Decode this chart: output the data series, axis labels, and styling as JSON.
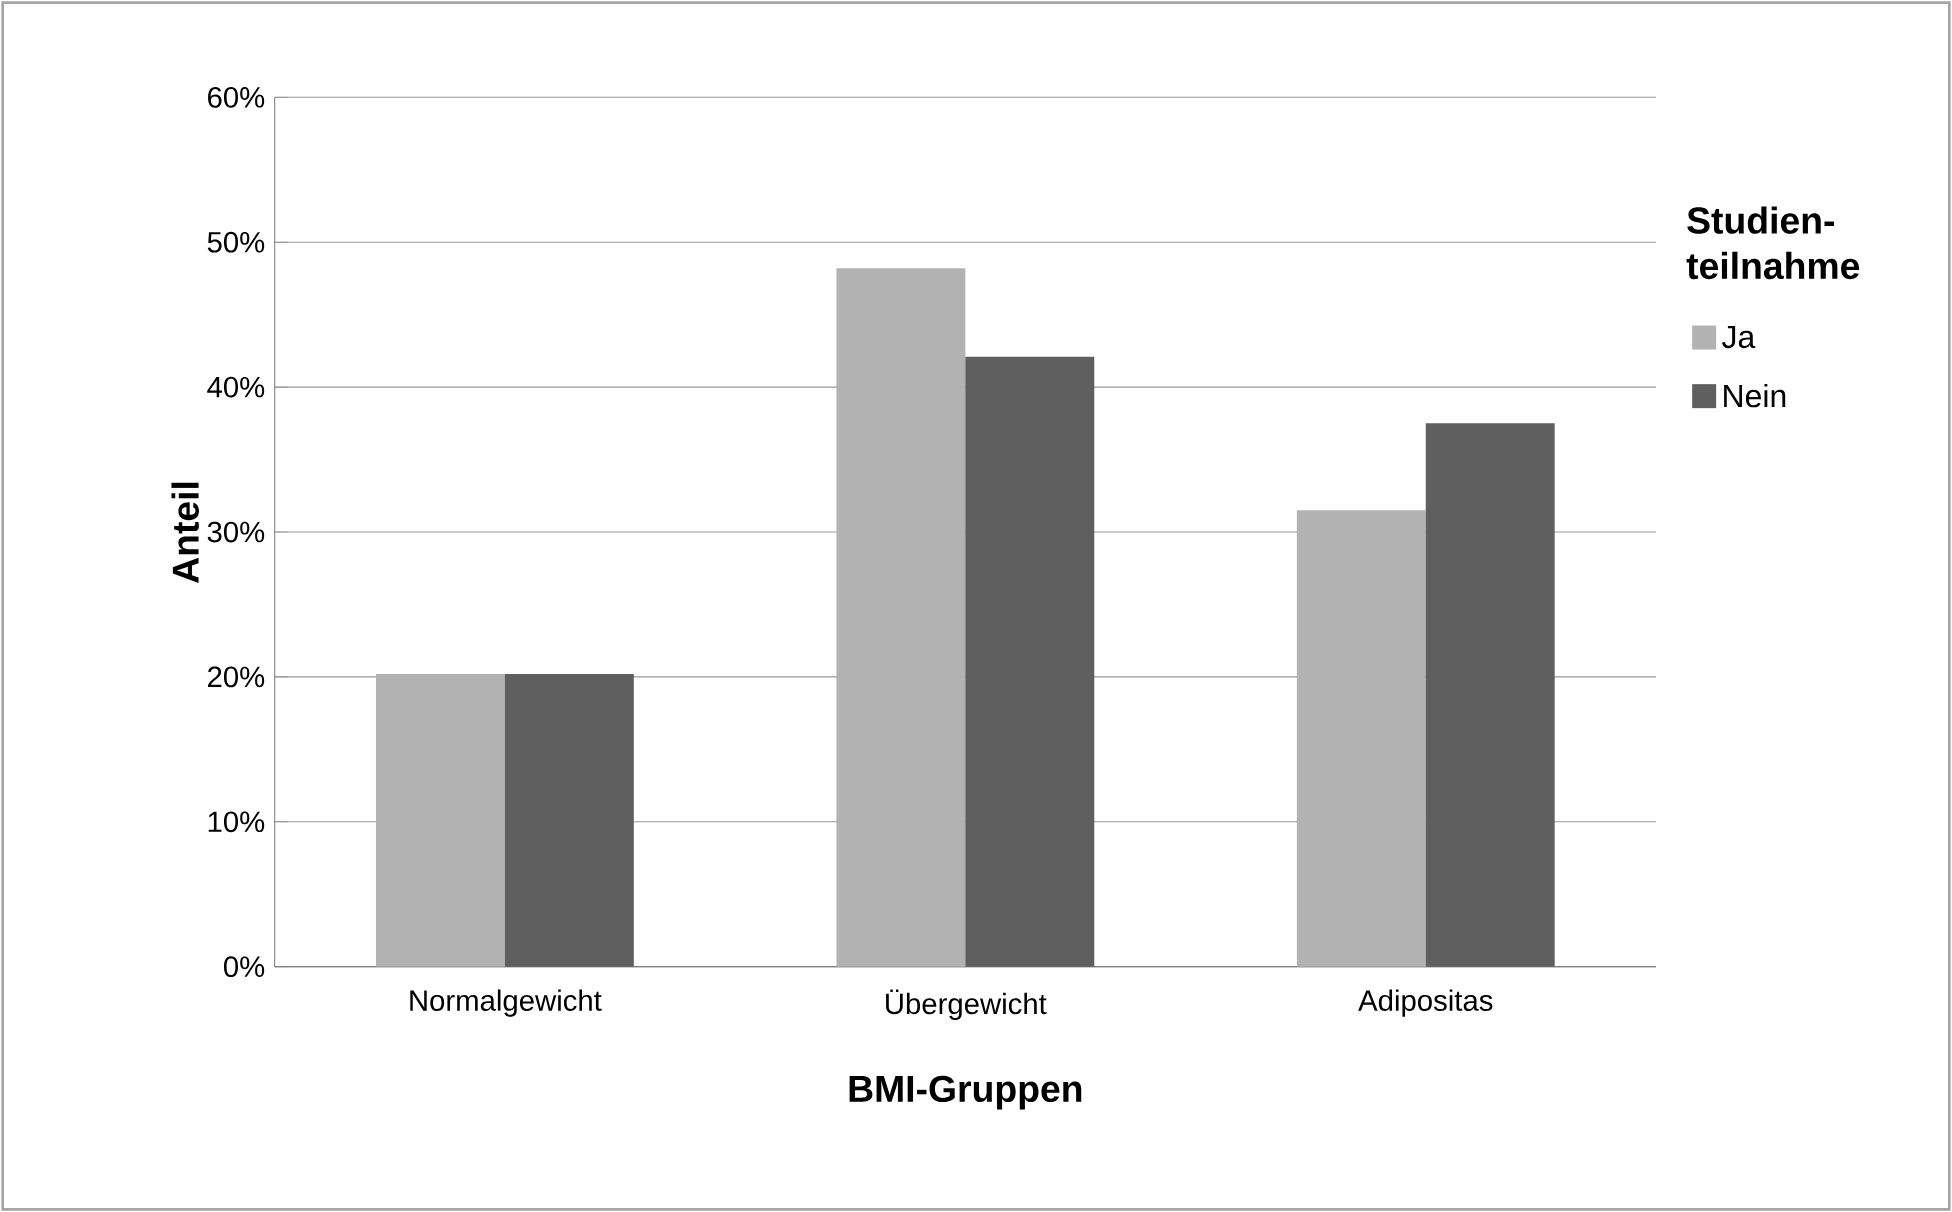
{
  "chart_data": {
    "type": "bar",
    "xlabel": "BMI-Gruppen",
    "ylabel": "Anteil",
    "legend_title": "Studien-teilnahme",
    "categories": [
      "Normalgewicht",
      "Übergewicht",
      "Adipositas"
    ],
    "series": [
      {
        "name": "Ja",
        "color": "#b2b2b2",
        "values": [
          20.2,
          48.2,
          31.5
        ]
      },
      {
        "name": "Nein",
        "color": "#5f5f5f",
        "values": [
          20.2,
          42.1,
          37.5
        ]
      }
    ],
    "ylim": [
      0,
      60
    ],
    "yticks": [
      {
        "value": 0,
        "label": "0%"
      },
      {
        "value": 10,
        "label": "10%"
      },
      {
        "value": 20,
        "label": "20%"
      },
      {
        "value": 30,
        "label": "30%"
      },
      {
        "value": 40,
        "label": "40%"
      },
      {
        "value": 50,
        "label": "50%"
      },
      {
        "value": 60,
        "label": "60%"
      }
    ],
    "grid": "y",
    "legend": "right"
  }
}
